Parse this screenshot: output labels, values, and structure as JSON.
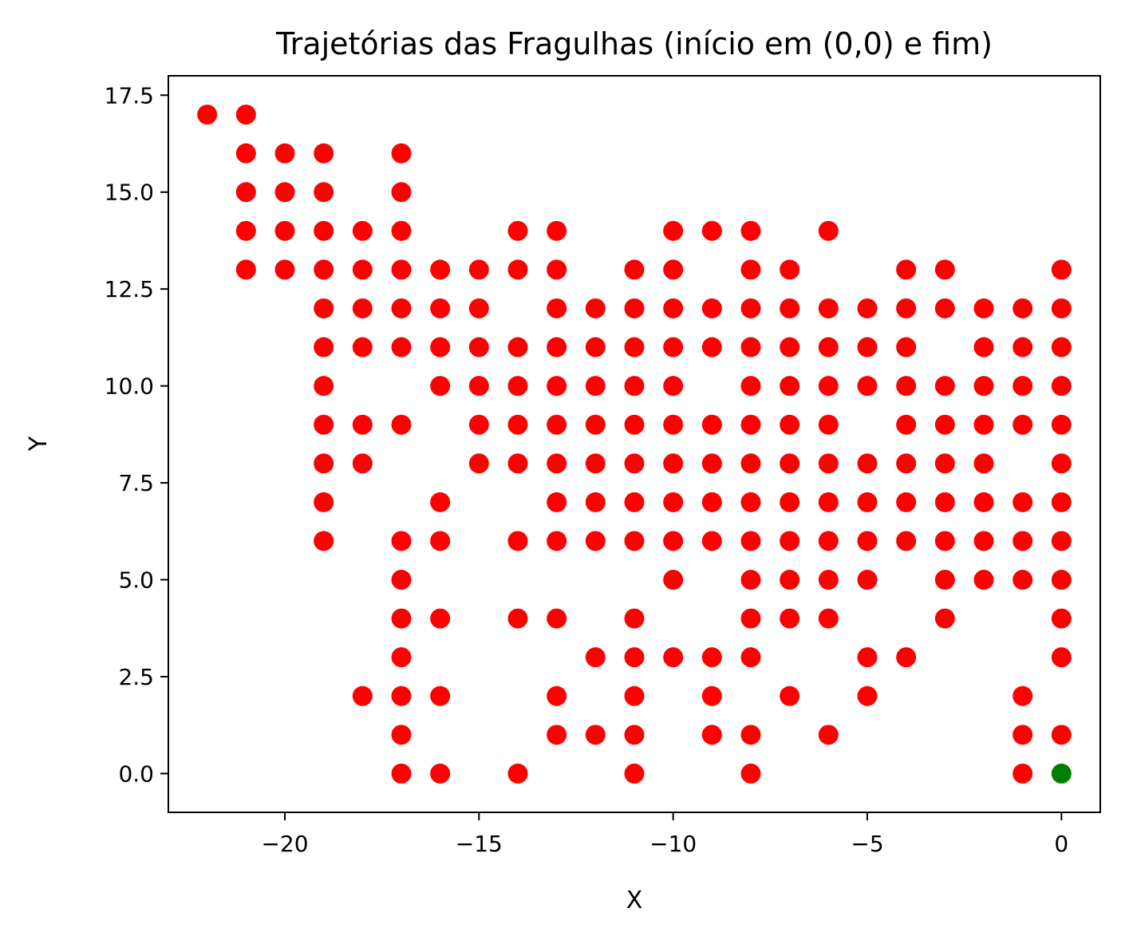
{
  "chart_data": {
    "type": "scatter",
    "title": "Trajetórias das Fragulhas (início em (0,0) e fim)",
    "xlabel": "X",
    "ylabel": "Y",
    "xlim": [
      -23,
      1
    ],
    "ylim": [
      -1,
      18
    ],
    "grid": false,
    "legend": "none",
    "x_ticks": [
      {
        "value": -20,
        "label": "−20"
      },
      {
        "value": -15,
        "label": "−15"
      },
      {
        "value": -10,
        "label": "−10"
      },
      {
        "value": -5,
        "label": "−5"
      },
      {
        "value": 0,
        "label": "0"
      }
    ],
    "y_ticks": [
      {
        "value": 0,
        "label": "0.0"
      },
      {
        "value": 2.5,
        "label": "2.5"
      },
      {
        "value": 5,
        "label": "5.0"
      },
      {
        "value": 7.5,
        "label": "7.5"
      },
      {
        "value": 10,
        "label": "10.0"
      },
      {
        "value": 12.5,
        "label": "12.5"
      },
      {
        "value": 15,
        "label": "15.0"
      },
      {
        "value": 17.5,
        "label": "17.5"
      }
    ],
    "series": [
      {
        "color": "#ff0000",
        "points": [
          [
            -22,
            17
          ],
          [
            -21,
            17
          ],
          [
            -21,
            16
          ],
          [
            -20,
            16
          ],
          [
            -19,
            16
          ],
          [
            -17,
            16
          ],
          [
            -21,
            15
          ],
          [
            -20,
            15
          ],
          [
            -19,
            15
          ],
          [
            -17,
            15
          ],
          [
            -21,
            14
          ],
          [
            -20,
            14
          ],
          [
            -19,
            14
          ],
          [
            -18,
            14
          ],
          [
            -17,
            14
          ],
          [
            -14,
            14
          ],
          [
            -13,
            14
          ],
          [
            -10,
            14
          ],
          [
            -9,
            14
          ],
          [
            -8,
            14
          ],
          [
            -6,
            14
          ],
          [
            -21,
            13
          ],
          [
            -20,
            13
          ],
          [
            -19,
            13
          ],
          [
            -18,
            13
          ],
          [
            -17,
            13
          ],
          [
            -16,
            13
          ],
          [
            -15,
            13
          ],
          [
            -14,
            13
          ],
          [
            -13,
            13
          ],
          [
            -11,
            13
          ],
          [
            -10,
            13
          ],
          [
            -8,
            13
          ],
          [
            -7,
            13
          ],
          [
            -4,
            13
          ],
          [
            -3,
            13
          ],
          [
            0,
            13
          ],
          [
            -19,
            12
          ],
          [
            -18,
            12
          ],
          [
            -17,
            12
          ],
          [
            -16,
            12
          ],
          [
            -15,
            12
          ],
          [
            -13,
            12
          ],
          [
            -12,
            12
          ],
          [
            -11,
            12
          ],
          [
            -10,
            12
          ],
          [
            -9,
            12
          ],
          [
            -8,
            12
          ],
          [
            -7,
            12
          ],
          [
            -6,
            12
          ],
          [
            -5,
            12
          ],
          [
            -4,
            12
          ],
          [
            -3,
            12
          ],
          [
            -2,
            12
          ],
          [
            -1,
            12
          ],
          [
            0,
            12
          ],
          [
            -19,
            11
          ],
          [
            -18,
            11
          ],
          [
            -17,
            11
          ],
          [
            -16,
            11
          ],
          [
            -15,
            11
          ],
          [
            -14,
            11
          ],
          [
            -13,
            11
          ],
          [
            -12,
            11
          ],
          [
            -11,
            11
          ],
          [
            -10,
            11
          ],
          [
            -9,
            11
          ],
          [
            -8,
            11
          ],
          [
            -7,
            11
          ],
          [
            -6,
            11
          ],
          [
            -5,
            11
          ],
          [
            -4,
            11
          ],
          [
            -2,
            11
          ],
          [
            -1,
            11
          ],
          [
            0,
            11
          ],
          [
            -19,
            10
          ],
          [
            -16,
            10
          ],
          [
            -15,
            10
          ],
          [
            -14,
            10
          ],
          [
            -13,
            10
          ],
          [
            -12,
            10
          ],
          [
            -11,
            10
          ],
          [
            -10,
            10
          ],
          [
            -8,
            10
          ],
          [
            -7,
            10
          ],
          [
            -6,
            10
          ],
          [
            -5,
            10
          ],
          [
            -4,
            10
          ],
          [
            -3,
            10
          ],
          [
            -2,
            10
          ],
          [
            -1,
            10
          ],
          [
            0,
            10
          ],
          [
            -19,
            9
          ],
          [
            -18,
            9
          ],
          [
            -17,
            9
          ],
          [
            -15,
            9
          ],
          [
            -14,
            9
          ],
          [
            -13,
            9
          ],
          [
            -12,
            9
          ],
          [
            -11,
            9
          ],
          [
            -10,
            9
          ],
          [
            -9,
            9
          ],
          [
            -8,
            9
          ],
          [
            -7,
            9
          ],
          [
            -6,
            9
          ],
          [
            -4,
            9
          ],
          [
            -3,
            9
          ],
          [
            -2,
            9
          ],
          [
            -1,
            9
          ],
          [
            0,
            9
          ],
          [
            -19,
            8
          ],
          [
            -18,
            8
          ],
          [
            -15,
            8
          ],
          [
            -14,
            8
          ],
          [
            -13,
            8
          ],
          [
            -12,
            8
          ],
          [
            -11,
            8
          ],
          [
            -10,
            8
          ],
          [
            -9,
            8
          ],
          [
            -8,
            8
          ],
          [
            -7,
            8
          ],
          [
            -6,
            8
          ],
          [
            -5,
            8
          ],
          [
            -4,
            8
          ],
          [
            -3,
            8
          ],
          [
            -2,
            8
          ],
          [
            0,
            8
          ],
          [
            -19,
            7
          ],
          [
            -16,
            7
          ],
          [
            -13,
            7
          ],
          [
            -12,
            7
          ],
          [
            -11,
            7
          ],
          [
            -10,
            7
          ],
          [
            -9,
            7
          ],
          [
            -8,
            7
          ],
          [
            -7,
            7
          ],
          [
            -6,
            7
          ],
          [
            -5,
            7
          ],
          [
            -4,
            7
          ],
          [
            -3,
            7
          ],
          [
            -2,
            7
          ],
          [
            -1,
            7
          ],
          [
            0,
            7
          ],
          [
            -19,
            6
          ],
          [
            -17,
            6
          ],
          [
            -16,
            6
          ],
          [
            -14,
            6
          ],
          [
            -13,
            6
          ],
          [
            -12,
            6
          ],
          [
            -11,
            6
          ],
          [
            -10,
            6
          ],
          [
            -9,
            6
          ],
          [
            -8,
            6
          ],
          [
            -7,
            6
          ],
          [
            -6,
            6
          ],
          [
            -5,
            6
          ],
          [
            -4,
            6
          ],
          [
            -3,
            6
          ],
          [
            -2,
            6
          ],
          [
            -1,
            6
          ],
          [
            0,
            6
          ],
          [
            -17,
            5
          ],
          [
            -10,
            5
          ],
          [
            -8,
            5
          ],
          [
            -7,
            5
          ],
          [
            -6,
            5
          ],
          [
            -5,
            5
          ],
          [
            -3,
            5
          ],
          [
            -2,
            5
          ],
          [
            -1,
            5
          ],
          [
            0,
            5
          ],
          [
            -17,
            4
          ],
          [
            -16,
            4
          ],
          [
            -14,
            4
          ],
          [
            -13,
            4
          ],
          [
            -11,
            4
          ],
          [
            -8,
            4
          ],
          [
            -7,
            4
          ],
          [
            -6,
            4
          ],
          [
            -3,
            4
          ],
          [
            0,
            4
          ],
          [
            -17,
            3
          ],
          [
            -12,
            3
          ],
          [
            -11,
            3
          ],
          [
            -10,
            3
          ],
          [
            -9,
            3
          ],
          [
            -8,
            3
          ],
          [
            -5,
            3
          ],
          [
            -4,
            3
          ],
          [
            0,
            3
          ],
          [
            -18,
            2
          ],
          [
            -17,
            2
          ],
          [
            -16,
            2
          ],
          [
            -13,
            2
          ],
          [
            -11,
            2
          ],
          [
            -9,
            2
          ],
          [
            -7,
            2
          ],
          [
            -5,
            2
          ],
          [
            -1,
            2
          ],
          [
            -17,
            1
          ],
          [
            -13,
            1
          ],
          [
            -12,
            1
          ],
          [
            -11,
            1
          ],
          [
            -9,
            1
          ],
          [
            -8,
            1
          ],
          [
            -6,
            1
          ],
          [
            -1,
            1
          ],
          [
            0,
            1
          ],
          [
            -17,
            0
          ],
          [
            -16,
            0
          ],
          [
            -14,
            0
          ],
          [
            -11,
            0
          ],
          [
            -8,
            0
          ],
          [
            -1,
            0
          ]
        ]
      },
      {
        "color": "#008000",
        "points": [
          [
            0,
            0
          ]
        ]
      }
    ]
  }
}
